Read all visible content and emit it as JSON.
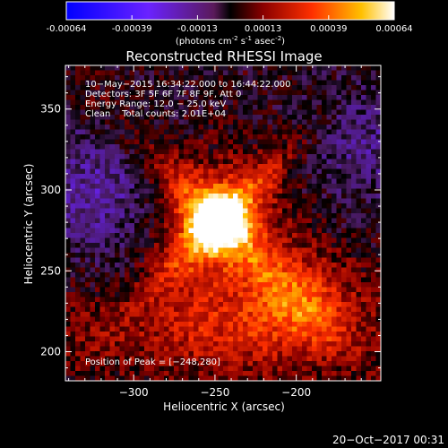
{
  "colorbar": {
    "ticks": [
      "-0.00064",
      "-0.00039",
      "-0.00013",
      "0.00013",
      "0.00039",
      "0.00064"
    ],
    "units_main": "(photons cm",
    "units_exp1": "-2",
    "units_mid": " s",
    "units_exp2": "-1",
    "units_end": " asec",
    "units_exp3": "-2",
    "units_close": ")"
  },
  "chart_data": {
    "type": "heatmap",
    "title": "Reconstructed RHESSI Image",
    "xlabel": "Heliocentric X (arcsec)",
    "ylabel": "Heliocentric Y (arcsec)",
    "xlim": [
      -342,
      -148
    ],
    "ylim": [
      182,
      377
    ],
    "x_ticks": [
      {
        "value": -300,
        "label": "−300"
      },
      {
        "value": -250,
        "label": "−250"
      },
      {
        "value": -200,
        "label": "−200"
      }
    ],
    "y_ticks": [
      {
        "value": 200,
        "label": "200"
      },
      {
        "value": 250,
        "label": "250"
      },
      {
        "value": 300,
        "label": "300"
      },
      {
        "value": 350,
        "label": "350"
      }
    ],
    "colorbar_range": [
      -0.00064,
      0.00064
    ],
    "annotations": [
      "10−May−2015 16:34:22.000 to 16:44:22.000",
      "Detectors: 3F 5F 6F 7F 8F 9F, Att 0",
      "Energy Range: 12.0 − 25.0 keV",
      "Clean    Total counts: 2.01E+04"
    ],
    "peak_label": "Position of Peak = [−248,280]",
    "peak": {
      "x": -248,
      "y": 280
    }
  },
  "footer": {
    "timestamp": "20−Oct−2017 00:31"
  }
}
